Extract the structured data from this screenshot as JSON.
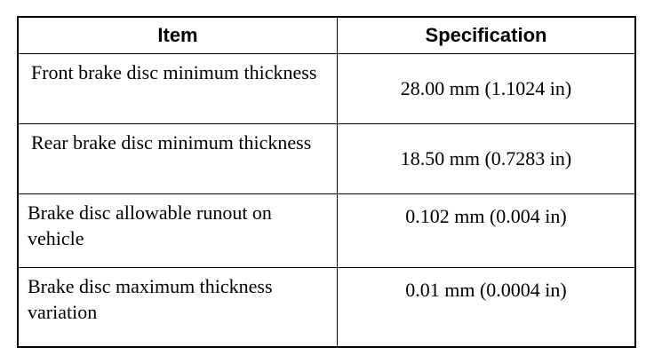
{
  "table": {
    "header": [
      "Item",
      "Specification"
    ],
    "rows": [
      [
        "Front brake disc minimum thickness",
        "28.00 mm (1.1024 in)"
      ],
      [
        "Rear brake disc minimum thickness",
        "18.50 mm (0.7283 in)"
      ],
      [
        "Brake disc allowable runout on vehicle",
        "0.102 mm (0.004 in)"
      ],
      [
        "Brake disc maximum thickness variation",
        "0.01 mm (0.0004 in)"
      ]
    ]
  }
}
